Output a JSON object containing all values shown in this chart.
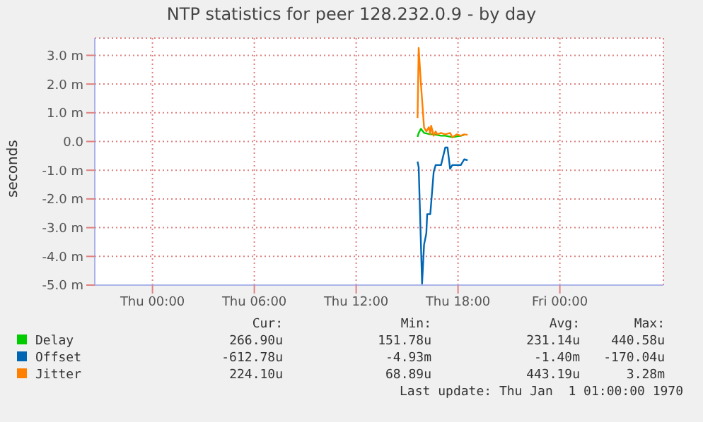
{
  "chart_data": {
    "type": "line",
    "title": "NTP statistics for peer 128.232.0.9 - by day",
    "ylabel": "seconds",
    "xlim": [
      "1969-12-31T20:36",
      "1970-01-02T06:06"
    ],
    "xticks": [
      {
        "value": "1970-01-01T00:00",
        "label": "Thu 00:00"
      },
      {
        "value": "1970-01-01T06:00",
        "label": "Thu 06:00"
      },
      {
        "value": "1970-01-01T12:00",
        "label": "Thu 12:00"
      },
      {
        "value": "1970-01-01T18:00",
        "label": "Thu 18:00"
      },
      {
        "value": "1970-01-02T00:00",
        "label": "Fri 00:00"
      }
    ],
    "ylim": [
      -5,
      3.6
    ],
    "yticks": [
      {
        "value": -5,
        "label": "-5.0 m"
      },
      {
        "value": -4,
        "label": "-4.0 m"
      },
      {
        "value": -3,
        "label": "-3.0 m"
      },
      {
        "value": -2,
        "label": "-2.0 m"
      },
      {
        "value": -1,
        "label": "-1.0 m"
      },
      {
        "value": 0,
        "label": "0.0"
      },
      {
        "value": 1,
        "label": "1.0 m"
      },
      {
        "value": 2,
        "label": "2.0 m"
      },
      {
        "value": 3,
        "label": "3.0 m"
      }
    ],
    "grid": true,
    "legend": "bottom",
    "series": [
      {
        "name": "Delay",
        "color": "#00cc00",
        "x": [
          "1970-01-01T15:37",
          "1970-01-01T15:41",
          "1970-01-01T15:49",
          "1970-01-01T16:00",
          "1970-01-01T16:17",
          "1970-01-01T16:34",
          "1970-01-01T17:00",
          "1970-01-01T17:15",
          "1970-01-01T17:40",
          "1970-01-01T18:10",
          "1970-01-01T18:22"
        ],
        "values": [
          0.16,
          0.3,
          0.44,
          0.3,
          0.26,
          0.25,
          0.2,
          0.2,
          0.15,
          0.2,
          0.23
        ]
      },
      {
        "name": "Offset",
        "color": "#0066b3",
        "x": [
          "1970-01-01T15:37",
          "1970-01-01T15:41",
          "1970-01-01T15:53",
          "1970-01-01T16:00",
          "1970-01-01T16:08",
          "1970-01-01T16:11",
          "1970-01-01T16:22",
          "1970-01-01T16:34",
          "1970-01-01T16:41",
          "1970-01-01T17:00",
          "1970-01-01T17:15",
          "1970-01-01T17:23",
          "1970-01-01T17:32",
          "1970-01-01T17:40",
          "1970-01-01T18:10",
          "1970-01-01T18:22",
          "1970-01-01T18:34"
        ],
        "values": [
          -0.7,
          -0.9,
          -4.95,
          -3.59,
          -3.2,
          -2.53,
          -2.53,
          -1.06,
          -0.82,
          -0.82,
          -0.21,
          -0.21,
          -0.95,
          -0.82,
          -0.82,
          -0.62,
          -0.65
        ]
      },
      {
        "name": "Jitter",
        "color": "#ff8000",
        "x": [
          "1970-01-01T15:37",
          "1970-01-01T15:41",
          "1970-01-01T15:49",
          "1970-01-01T16:00",
          "1970-01-01T16:08",
          "1970-01-01T16:17",
          "1970-01-01T16:22",
          "1970-01-01T16:25",
          "1970-01-01T16:34",
          "1970-01-01T16:41",
          "1970-01-01T16:47",
          "1970-01-01T17:00",
          "1970-01-01T17:15",
          "1970-01-01T17:32",
          "1970-01-01T17:40",
          "1970-01-01T17:56",
          "1970-01-01T18:10",
          "1970-01-01T18:22",
          "1970-01-01T18:34"
        ],
        "values": [
          0.82,
          3.26,
          2.0,
          0.49,
          0.35,
          0.5,
          0.25,
          0.55,
          0.2,
          0.35,
          0.25,
          0.3,
          0.25,
          0.3,
          0.15,
          0.25,
          0.2,
          0.25,
          0.23
        ]
      }
    ],
    "annotations": [
      "Cur:",
      "Min:",
      "Avg:",
      "Max:",
      "266.90u",
      "151.78u",
      "231.14u",
      "440.58u",
      "-612.78u",
      "-4.93m",
      "-1.40m",
      "-170.04u",
      "224.10u",
      "68.89u",
      "443.19u",
      "3.28m",
      "Last update: Thu Jan  1 01:00:00 1970"
    ]
  }
}
